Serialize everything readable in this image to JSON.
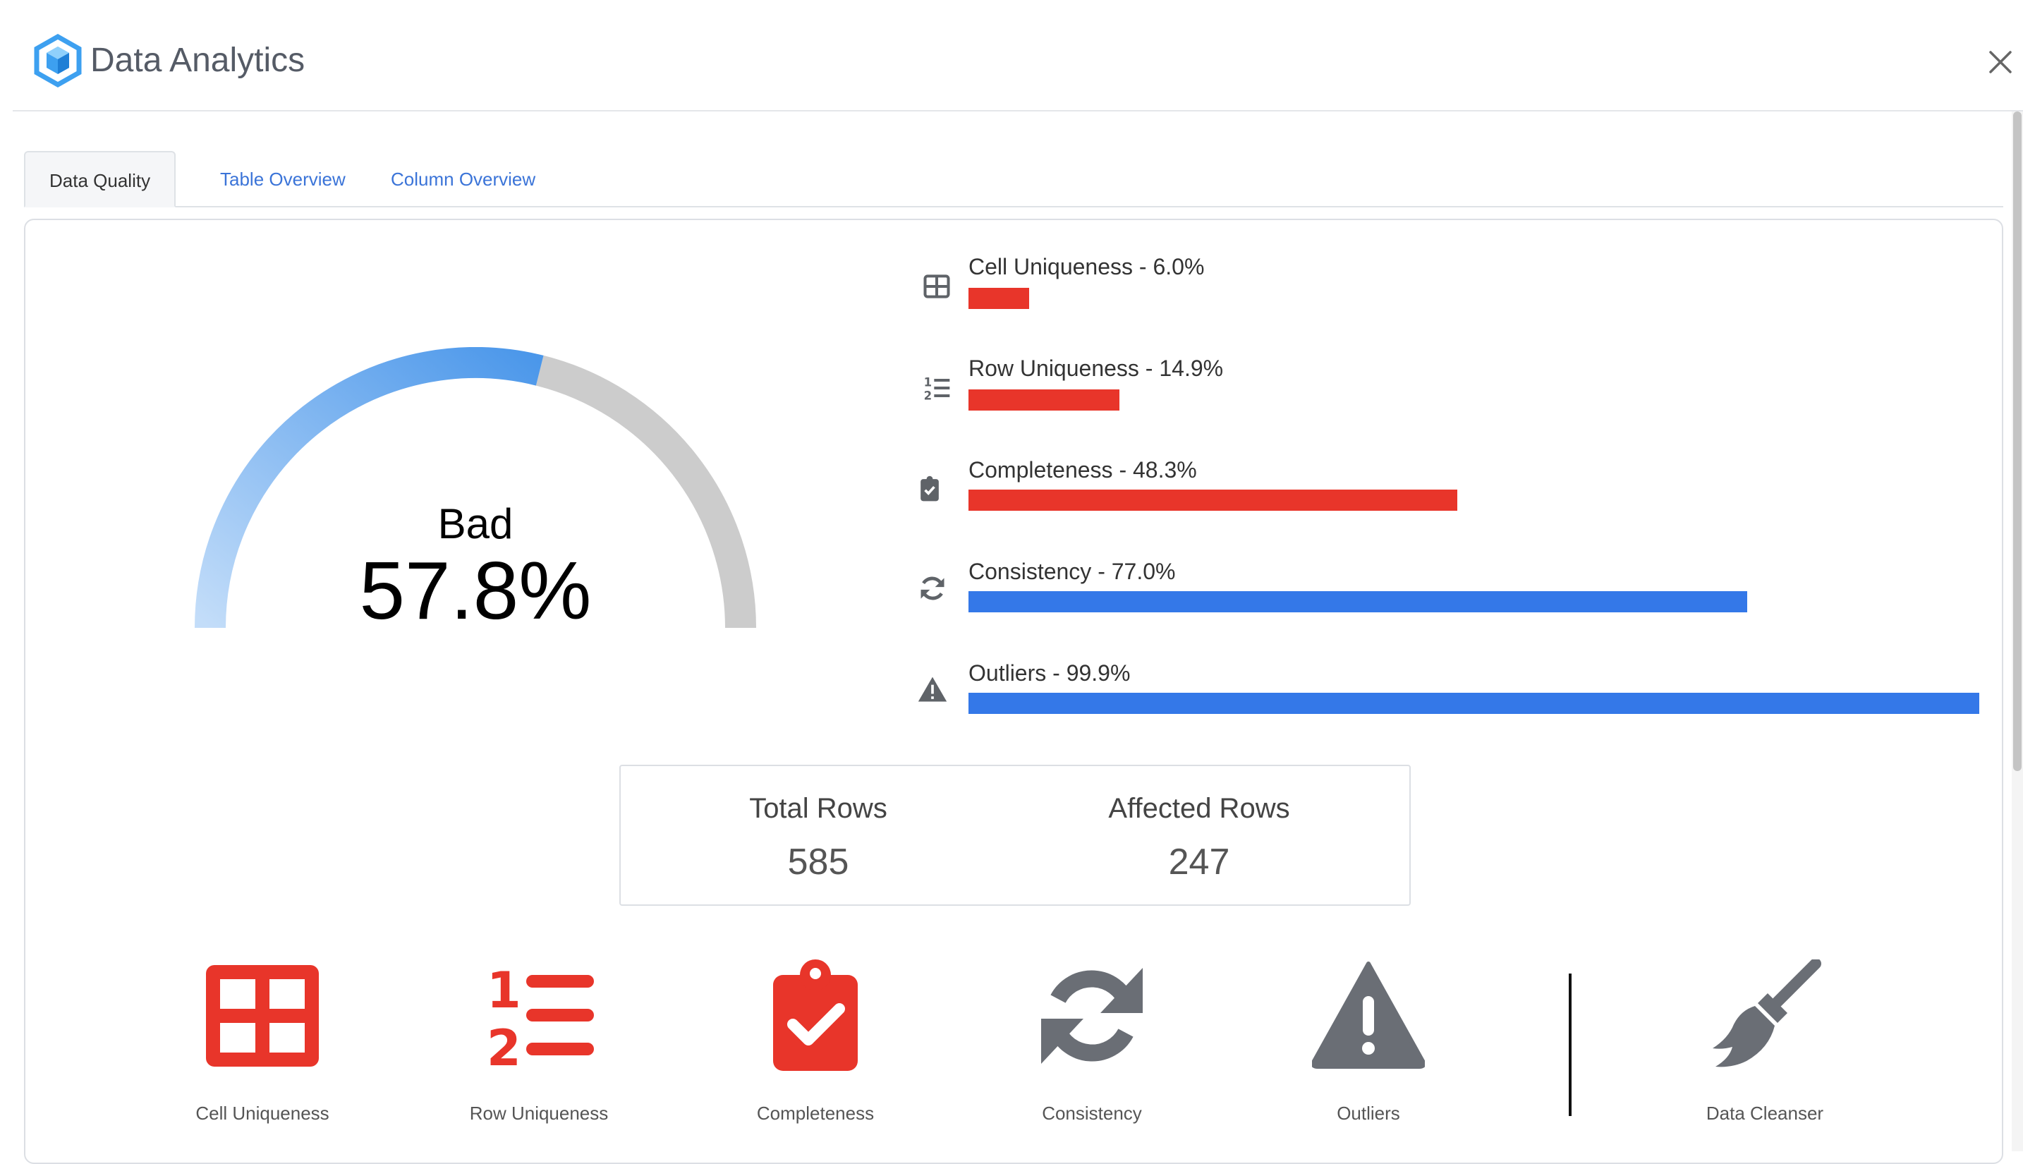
{
  "app": {
    "title": "Data Analytics",
    "logo_icon": "hexagon-cube-icon",
    "close_icon": "close-icon"
  },
  "tabs": [
    {
      "label": "Data Quality",
      "active": true
    },
    {
      "label": "Table Overview",
      "active": false
    },
    {
      "label": "Column Overview",
      "active": false
    }
  ],
  "gauge": {
    "status": "Bad",
    "value_text": "57.8%",
    "value": 57.8,
    "colors": {
      "fill_start": "#c3ddf9",
      "fill_end": "#4b97ea",
      "track": "#cccccc"
    }
  },
  "metrics": [
    {
      "label": "Cell Uniqueness - 6.0%",
      "value": 6.0,
      "icon": "table-icon",
      "color": "#e8352a"
    },
    {
      "label": "Row Uniqueness - 14.9%",
      "value": 14.9,
      "icon": "numbered-list-icon",
      "color": "#e8352a"
    },
    {
      "label": "Completeness - 48.3%",
      "value": 48.3,
      "icon": "clipboard-check-icon",
      "color": "#e8352a"
    },
    {
      "label": "Consistency - 77.0%",
      "value": 77.0,
      "icon": "sync-icon",
      "color": "#3478e8"
    },
    {
      "label": "Outliers - 99.9%",
      "value": 99.9,
      "icon": "warning-icon",
      "color": "#3478e8"
    }
  ],
  "stats": {
    "total_rows_label": "Total Rows",
    "total_rows_value": "585",
    "affected_rows_label": "Affected Rows",
    "affected_rows_value": "247"
  },
  "actions": [
    {
      "label": "Cell Uniqueness",
      "icon": "table-icon",
      "color": "#e8352a"
    },
    {
      "label": "Row Uniqueness",
      "icon": "numbered-list-icon",
      "color": "#e8352a"
    },
    {
      "label": "Completeness",
      "icon": "clipboard-check-icon",
      "color": "#e8352a"
    },
    {
      "label": "Consistency",
      "icon": "sync-icon",
      "color": "#6a6e75"
    },
    {
      "label": "Outliers",
      "icon": "warning-icon",
      "color": "#6a6e75"
    },
    {
      "label": "Data Cleanser",
      "icon": "broom-icon",
      "color": "#6a6e75"
    }
  ]
}
